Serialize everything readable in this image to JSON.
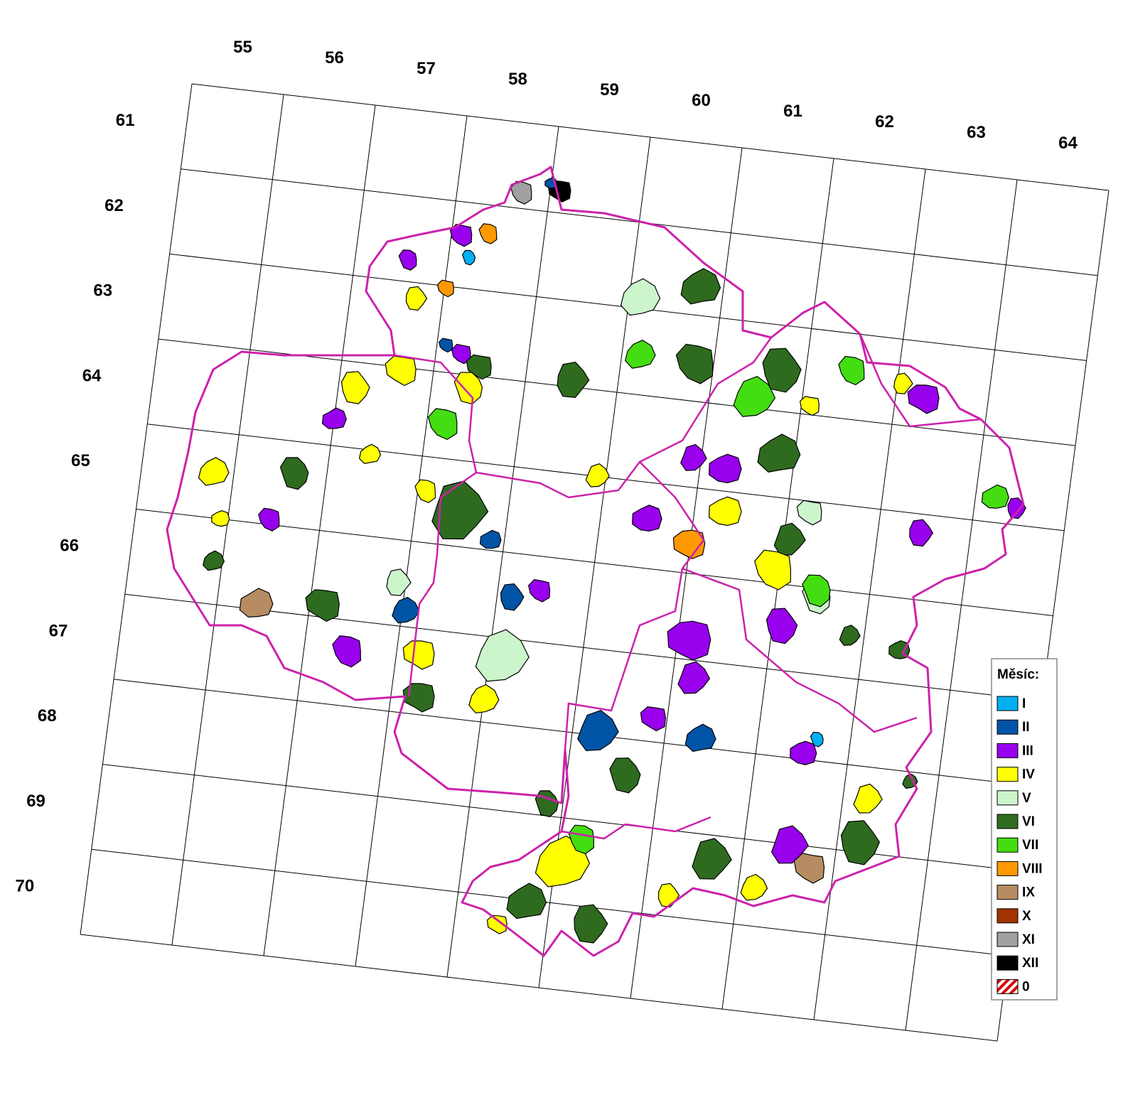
{
  "map": {
    "columns": [
      "55",
      "56",
      "57",
      "58",
      "59",
      "60",
      "61",
      "62",
      "63",
      "64"
    ],
    "rows": [
      "61",
      "62",
      "63",
      "64",
      "65",
      "66",
      "67",
      "68",
      "69",
      "70"
    ],
    "legend": {
      "title": "Měsíc:",
      "items": [
        {
          "label": "I",
          "color": "#00b0f0"
        },
        {
          "label": "II",
          "color": "#0054a6"
        },
        {
          "label": "III",
          "color": "#9900ee"
        },
        {
          "label": "IV",
          "color": "#ffff00"
        },
        {
          "label": "V",
          "color": "#ccf5cc"
        },
        {
          "label": "VI",
          "color": "#2e6b1f"
        },
        {
          "label": "VII",
          "color": "#44dd11"
        },
        {
          "label": "VIII",
          "color": "#ff9900"
        },
        {
          "label": "IX",
          "color": "#b88c62"
        },
        {
          "label": "X",
          "color": "#a33300"
        },
        {
          "label": "XI",
          "color": "#a0a0a0"
        },
        {
          "label": "XII",
          "color": "#000000"
        },
        {
          "label": "0",
          "color": "#dd0000",
          "hatched": true
        }
      ]
    }
  }
}
